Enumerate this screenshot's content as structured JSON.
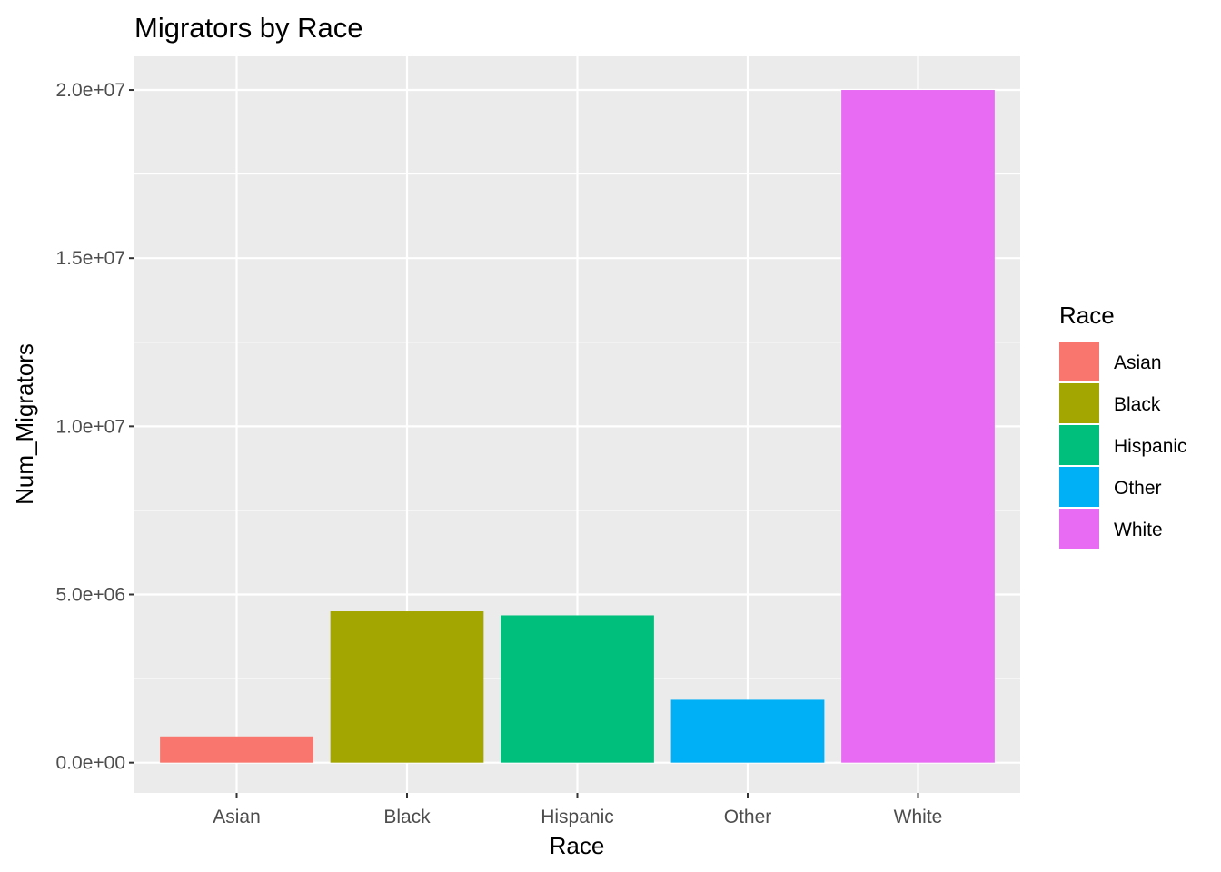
{
  "chart_data": {
    "type": "bar",
    "title": "Migrators by Race",
    "xlabel": "Race",
    "ylabel": "Num_Migrators",
    "categories": [
      "Asian",
      "Black",
      "Hispanic",
      "Other",
      "White"
    ],
    "values": [
      780000,
      4500000,
      4380000,
      1870000,
      20000000
    ],
    "colors": [
      "#F8766D",
      "#A3A500",
      "#00BF7D",
      "#00B0F6",
      "#E76BF3"
    ],
    "ylim": [
      -900000,
      21000000
    ],
    "yticks": [
      0,
      5000000,
      10000000,
      15000000,
      20000000
    ],
    "ytick_labels": [
      "0.0e+00",
      "5.0e+06",
      "1.0e+07",
      "1.5e+07",
      "2.0e+07"
    ],
    "grid": true,
    "panel_background": "#EBEBEB",
    "grid_color": "#FFFFFF",
    "legend": {
      "title": "Race",
      "position": "right",
      "entries": [
        "Asian",
        "Black",
        "Hispanic",
        "Other",
        "White"
      ]
    }
  }
}
